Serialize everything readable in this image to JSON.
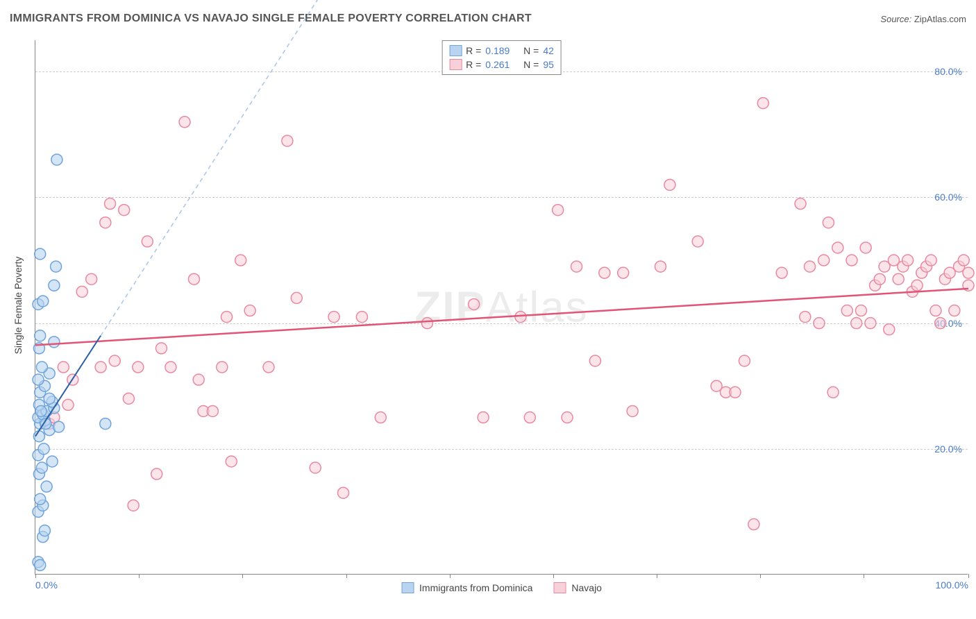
{
  "title": "IMMIGRANTS FROM DOMINICA VS NAVAJO SINGLE FEMALE POVERTY CORRELATION CHART",
  "source_label": "Source:",
  "source_value": "ZipAtlas.com",
  "y_axis_title": "Single Female Poverty",
  "watermark_bold": "ZIP",
  "watermark_rest": "Atlas",
  "chart": {
    "type": "scatter",
    "xlim": [
      0,
      100
    ],
    "ylim": [
      0,
      85
    ],
    "background_color": "#ffffff",
    "grid_color": "#cccccc",
    "axis_color": "#888888",
    "yticks": [
      {
        "value": 20,
        "label": "20.0%"
      },
      {
        "value": 40,
        "label": "40.0%"
      },
      {
        "value": 60,
        "label": "60.0%"
      },
      {
        "value": 80,
        "label": "80.0%"
      }
    ],
    "xticks_major": [
      {
        "value": 0,
        "label": "0.0%"
      },
      {
        "value": 100,
        "label": "100.0%"
      }
    ],
    "xticks_minor": [
      11.1,
      22.2,
      33.3,
      44.4,
      55.5,
      66.6,
      77.7,
      88.8
    ],
    "marker_radius": 8,
    "marker_stroke_width": 1.5,
    "series": [
      {
        "name": "Immigrants from Dominica",
        "fill_color": "#b8d4f0",
        "stroke_color": "#6fa3db",
        "fill_opacity": 0.6,
        "r_value": "0.189",
        "n_value": "42",
        "trend": {
          "x1": 0,
          "y1": 22,
          "x2": 7,
          "y2": 38,
          "dash_x2": 37,
          "dash_y2": 107,
          "solid_color": "#2c5fa3",
          "dash_color": "#a8c5e8",
          "width": 2
        },
        "points": [
          [
            0.3,
            2
          ],
          [
            0.5,
            1.5
          ],
          [
            0.8,
            6
          ],
          [
            1.0,
            7
          ],
          [
            0.3,
            10
          ],
          [
            0.8,
            11
          ],
          [
            0.5,
            12
          ],
          [
            1.2,
            14
          ],
          [
            0.4,
            16
          ],
          [
            0.7,
            17
          ],
          [
            1.8,
            18
          ],
          [
            0.3,
            19
          ],
          [
            0.9,
            20
          ],
          [
            0.4,
            22
          ],
          [
            1.5,
            23
          ],
          [
            2.5,
            23.5
          ],
          [
            0.5,
            24
          ],
          [
            1.0,
            24.5
          ],
          [
            0.3,
            25
          ],
          [
            0.8,
            25.5
          ],
          [
            1.2,
            26
          ],
          [
            2.0,
            26.5
          ],
          [
            0.4,
            27
          ],
          [
            1.8,
            27.5
          ],
          [
            7.5,
            24
          ],
          [
            0.5,
            29
          ],
          [
            1.0,
            30
          ],
          [
            0.3,
            31
          ],
          [
            1.5,
            32
          ],
          [
            0.7,
            33
          ],
          [
            0.4,
            36
          ],
          [
            2.0,
            37
          ],
          [
            0.5,
            38
          ],
          [
            0.3,
            43
          ],
          [
            0.8,
            43.5
          ],
          [
            2.0,
            46
          ],
          [
            0.5,
            51
          ],
          [
            2.2,
            49
          ],
          [
            2.3,
            66
          ],
          [
            1.5,
            28
          ],
          [
            0.6,
            26
          ],
          [
            1.1,
            24
          ]
        ]
      },
      {
        "name": "Navajo",
        "fill_color": "#f8d0da",
        "stroke_color": "#e8899f",
        "fill_opacity": 0.55,
        "r_value": "0.261",
        "n_value": "95",
        "trend": {
          "x1": 0,
          "y1": 36.5,
          "x2": 100,
          "y2": 45.5,
          "solid_color": "#e05577",
          "width": 2.5
        },
        "points": [
          [
            1.5,
            24
          ],
          [
            2.0,
            25
          ],
          [
            3.0,
            33
          ],
          [
            3.5,
            27
          ],
          [
            4.0,
            31
          ],
          [
            5.0,
            45
          ],
          [
            6.0,
            47
          ],
          [
            7.0,
            33
          ],
          [
            8.0,
            59
          ],
          [
            9.5,
            58
          ],
          [
            10.0,
            28
          ],
          [
            10.5,
            11
          ],
          [
            11.0,
            33
          ],
          [
            12.0,
            53
          ],
          [
            13.0,
            16
          ],
          [
            14.5,
            33
          ],
          [
            16.0,
            72
          ],
          [
            17.0,
            47
          ],
          [
            17.5,
            31
          ],
          [
            18.0,
            26
          ],
          [
            19.0,
            26
          ],
          [
            20.0,
            33
          ],
          [
            20.5,
            41
          ],
          [
            21.0,
            18
          ],
          [
            22.0,
            50
          ],
          [
            23.0,
            42
          ],
          [
            25.0,
            33
          ],
          [
            27.0,
            69
          ],
          [
            28.0,
            44
          ],
          [
            30.0,
            17
          ],
          [
            32.0,
            41
          ],
          [
            33.0,
            13
          ],
          [
            35.0,
            41
          ],
          [
            37.0,
            25
          ],
          [
            42.0,
            40
          ],
          [
            47.0,
            43
          ],
          [
            48.0,
            25
          ],
          [
            52.0,
            41
          ],
          [
            53.0,
            25
          ],
          [
            56.0,
            58
          ],
          [
            57.0,
            25
          ],
          [
            58.0,
            49
          ],
          [
            60.0,
            34
          ],
          [
            61.0,
            48
          ],
          [
            63.0,
            48
          ],
          [
            64,
            26
          ],
          [
            67.0,
            49
          ],
          [
            68.0,
            62
          ],
          [
            71.0,
            53
          ],
          [
            73.0,
            30
          ],
          [
            74.0,
            29
          ],
          [
            75.0,
            29
          ],
          [
            76.0,
            34
          ],
          [
            77.0,
            8
          ],
          [
            78.0,
            75
          ],
          [
            80.0,
            48
          ],
          [
            82.0,
            59
          ],
          [
            82.5,
            41
          ],
          [
            83.0,
            49
          ],
          [
            84.0,
            40
          ],
          [
            84.5,
            50
          ],
          [
            85.0,
            56
          ],
          [
            85.5,
            29
          ],
          [
            86.0,
            52
          ],
          [
            87.0,
            42
          ],
          [
            87.5,
            50
          ],
          [
            88.0,
            40
          ],
          [
            88.5,
            42
          ],
          [
            89.0,
            52
          ],
          [
            89.5,
            40
          ],
          [
            90.0,
            46
          ],
          [
            90.5,
            47
          ],
          [
            91.0,
            49
          ],
          [
            91.5,
            39
          ],
          [
            92.0,
            50
          ],
          [
            92.5,
            47
          ],
          [
            93.0,
            49
          ],
          [
            93.5,
            50
          ],
          [
            94.0,
            45
          ],
          [
            94.5,
            46
          ],
          [
            95.0,
            48
          ],
          [
            95.5,
            49
          ],
          [
            96.0,
            50
          ],
          [
            96.5,
            42
          ],
          [
            97.0,
            40
          ],
          [
            97.5,
            47
          ],
          [
            98.0,
            48
          ],
          [
            98.5,
            42
          ],
          [
            99.0,
            49
          ],
          [
            99.5,
            50
          ],
          [
            100,
            46
          ],
          [
            100,
            48
          ],
          [
            7.5,
            56
          ],
          [
            8.5,
            34
          ],
          [
            13.5,
            36
          ]
        ]
      }
    ],
    "legend_top": {
      "r_label": "R =",
      "n_label": "N ="
    },
    "legend_bottom_labels": [
      "Immigrants from Dominica",
      "Navajo"
    ]
  }
}
